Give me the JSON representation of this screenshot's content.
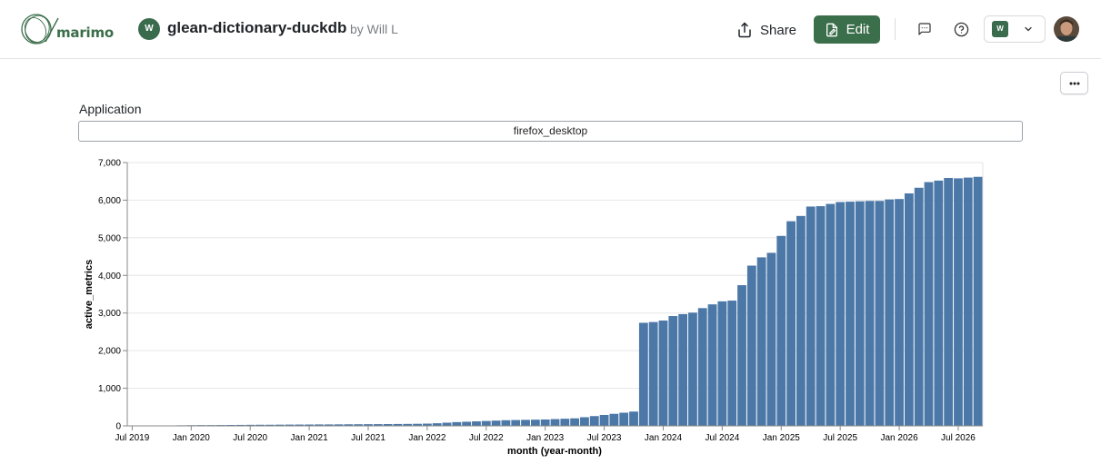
{
  "header": {
    "logo_text": "marimo",
    "notebook_avatar": "W",
    "notebook_title": "glean-dictionary-duckdb",
    "author": "by Will L",
    "share_label": "Share",
    "edit_label": "Edit",
    "workspace_badge": "W",
    "brand_color": "#3b6e4a"
  },
  "icons": {
    "share": "share-icon",
    "edit": "edit-icon",
    "comment": "comment-icon",
    "help": "help-icon",
    "chevron": "chevron-down-icon",
    "more": "more-icon"
  },
  "form": {
    "label": "Application",
    "selected_value": "firefox_desktop"
  },
  "chart_data": {
    "type": "bar",
    "xlabel": "month (year-month)",
    "ylabel": "active_metrics",
    "ylim": [
      0,
      7000
    ],
    "yticks": [
      "0",
      "1,000",
      "2,000",
      "3,000",
      "4,000",
      "5,000",
      "6,000",
      "7,000"
    ],
    "xticks": [
      "Jul 2019",
      "Jan 2020",
      "Jul 2020",
      "Jan 2021",
      "Jul 2021",
      "Jan 2022",
      "Jul 2022",
      "Jan 2023",
      "Jul 2023",
      "Jan 2024",
      "Jul 2024",
      "Jan 2025",
      "Jul 2025",
      "Jan 2026",
      "Jul 2026"
    ],
    "bar_color": "#4c78a8",
    "start_month": "Jul 2019",
    "values": [
      3,
      5,
      8,
      10,
      12,
      15,
      18,
      20,
      20,
      22,
      24,
      26,
      28,
      30,
      30,
      32,
      34,
      35,
      36,
      38,
      38,
      40,
      42,
      43,
      45,
      46,
      48,
      50,
      52,
      55,
      60,
      70,
      85,
      100,
      110,
      120,
      130,
      140,
      150,
      155,
      160,
      165,
      170,
      180,
      190,
      200,
      230,
      260,
      290,
      320,
      350,
      380,
      2740,
      2760,
      2800,
      2920,
      2970,
      3010,
      3130,
      3230,
      3310,
      3330,
      3740,
      4260,
      4480,
      4600,
      5050,
      5440,
      5580,
      5830,
      5840,
      5900,
      5950,
      5960,
      5970,
      5980,
      5980,
      6020,
      6030,
      6180,
      6330,
      6480,
      6520,
      6590,
      6580,
      6600,
      6620
    ]
  }
}
